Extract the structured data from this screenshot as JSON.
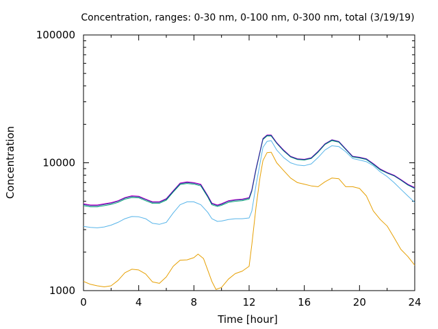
{
  "chart_data": {
    "type": "line",
    "title": "Concentration, ranges: 0-30 nm, 0-100 nm, 0-300 nm, total (3/19/19)",
    "xlabel": "Time [hour]",
    "ylabel": "Concentration",
    "xlim": [
      0,
      24
    ],
    "ylim": [
      1000,
      100000
    ],
    "yscale": "log",
    "grid": false,
    "legend": "none",
    "x_ticks": [
      0,
      4,
      8,
      12,
      16,
      20,
      24
    ],
    "y_ticks": [
      1000,
      10000,
      100000
    ],
    "series": [
      {
        "color": "#e69f00",
        "points": [
          [
            0,
            1180
          ],
          [
            0.5,
            1120
          ],
          [
            1,
            1090
          ],
          [
            1.5,
            1070
          ],
          [
            2,
            1090
          ],
          [
            2.5,
            1200
          ],
          [
            3,
            1380
          ],
          [
            3.5,
            1470
          ],
          [
            4,
            1450
          ],
          [
            4.5,
            1350
          ],
          [
            5,
            1170
          ],
          [
            5.5,
            1140
          ],
          [
            6,
            1280
          ],
          [
            6.5,
            1550
          ],
          [
            7,
            1730
          ],
          [
            7.5,
            1740
          ],
          [
            8,
            1810
          ],
          [
            8.3,
            1930
          ],
          [
            8.7,
            1780
          ],
          [
            9,
            1450
          ],
          [
            9.3,
            1180
          ],
          [
            9.6,
            1020
          ],
          [
            10,
            1060
          ],
          [
            10.5,
            1230
          ],
          [
            11,
            1360
          ],
          [
            11.5,
            1420
          ],
          [
            12,
            1550
          ],
          [
            12.2,
            2300
          ],
          [
            12.5,
            4500
          ],
          [
            12.8,
            7800
          ],
          [
            13,
            10400
          ],
          [
            13.3,
            12000
          ],
          [
            13.6,
            12100
          ],
          [
            14,
            10000
          ],
          [
            14.5,
            8700
          ],
          [
            15,
            7600
          ],
          [
            15.5,
            7000
          ],
          [
            16,
            6800
          ],
          [
            16.5,
            6600
          ],
          [
            17,
            6500
          ],
          [
            17.5,
            7100
          ],
          [
            18,
            7600
          ],
          [
            18.5,
            7500
          ],
          [
            19,
            6500
          ],
          [
            19.5,
            6500
          ],
          [
            20,
            6300
          ],
          [
            20.5,
            5500
          ],
          [
            21,
            4200
          ],
          [
            21.5,
            3600
          ],
          [
            22,
            3200
          ],
          [
            22.5,
            2600
          ],
          [
            23,
            2100
          ],
          [
            23.5,
            1850
          ],
          [
            24,
            1580
          ]
        ]
      },
      {
        "color": "#56b4e9",
        "points": [
          [
            0,
            3180
          ],
          [
            0.5,
            3120
          ],
          [
            1,
            3100
          ],
          [
            1.5,
            3150
          ],
          [
            2,
            3250
          ],
          [
            2.5,
            3420
          ],
          [
            3,
            3650
          ],
          [
            3.5,
            3800
          ],
          [
            4,
            3780
          ],
          [
            4.5,
            3650
          ],
          [
            5,
            3360
          ],
          [
            5.5,
            3300
          ],
          [
            6,
            3420
          ],
          [
            6.5,
            4050
          ],
          [
            7,
            4700
          ],
          [
            7.5,
            4950
          ],
          [
            8,
            4950
          ],
          [
            8.5,
            4700
          ],
          [
            9,
            4100
          ],
          [
            9.3,
            3650
          ],
          [
            9.7,
            3480
          ],
          [
            10,
            3500
          ],
          [
            10.5,
            3600
          ],
          [
            11,
            3650
          ],
          [
            11.5,
            3650
          ],
          [
            12,
            3700
          ],
          [
            12.2,
            4200
          ],
          [
            12.5,
            6700
          ],
          [
            12.8,
            10000
          ],
          [
            13,
            13200
          ],
          [
            13.3,
            14700
          ],
          [
            13.6,
            14900
          ],
          [
            14,
            12600
          ],
          [
            14.5,
            11000
          ],
          [
            15,
            10000
          ],
          [
            15.5,
            9600
          ],
          [
            16,
            9500
          ],
          [
            16.5,
            9800
          ],
          [
            17,
            11000
          ],
          [
            17.5,
            12600
          ],
          [
            18,
            13600
          ],
          [
            18.5,
            13400
          ],
          [
            19,
            12200
          ],
          [
            19.5,
            10800
          ],
          [
            20,
            10500
          ],
          [
            20.5,
            10200
          ],
          [
            21,
            9500
          ],
          [
            21.5,
            8500
          ],
          [
            22,
            7800
          ],
          [
            22.5,
            7000
          ],
          [
            23,
            6200
          ],
          [
            23.5,
            5500
          ],
          [
            24,
            4900
          ]
        ]
      },
      {
        "color": "#009e73",
        "points": [
          [
            0,
            4620
          ],
          [
            0.5,
            4520
          ],
          [
            1,
            4520
          ],
          [
            1.5,
            4620
          ],
          [
            2,
            4720
          ],
          [
            2.5,
            4900
          ],
          [
            3,
            5200
          ],
          [
            3.5,
            5350
          ],
          [
            4,
            5320
          ],
          [
            4.5,
            5050
          ],
          [
            5,
            4820
          ],
          [
            5.5,
            4820
          ],
          [
            6,
            5100
          ],
          [
            6.5,
            5900
          ],
          [
            7,
            6750
          ],
          [
            7.5,
            6900
          ],
          [
            8,
            6800
          ],
          [
            8.5,
            6600
          ],
          [
            9,
            5400
          ],
          [
            9.3,
            4700
          ],
          [
            9.7,
            4550
          ],
          [
            10,
            4650
          ],
          [
            10.5,
            4900
          ],
          [
            11,
            5000
          ],
          [
            11.5,
            5050
          ],
          [
            12,
            5200
          ],
          [
            12.2,
            6000
          ],
          [
            12.5,
            8800
          ],
          [
            12.8,
            12200
          ],
          [
            13,
            15200
          ],
          [
            13.3,
            16200
          ],
          [
            13.6,
            16200
          ],
          [
            14,
            14200
          ],
          [
            14.5,
            12400
          ],
          [
            15,
            11100
          ],
          [
            15.5,
            10600
          ],
          [
            16,
            10500
          ],
          [
            16.5,
            10800
          ],
          [
            17,
            12100
          ],
          [
            17.5,
            13900
          ],
          [
            18,
            14900
          ],
          [
            18.5,
            14500
          ],
          [
            19,
            12700
          ],
          [
            19.5,
            11100
          ],
          [
            20,
            10900
          ],
          [
            20.5,
            10600
          ],
          [
            21,
            9700
          ],
          [
            21.5,
            8800
          ],
          [
            22,
            8300
          ],
          [
            22.5,
            7900
          ],
          [
            23,
            7300
          ],
          [
            23.5,
            6700
          ],
          [
            24,
            6300
          ]
        ]
      },
      {
        "color": "#cc00cc",
        "points": [
          [
            0,
            4780
          ],
          [
            0.5,
            4680
          ],
          [
            1,
            4680
          ],
          [
            1.5,
            4780
          ],
          [
            2,
            4880
          ],
          [
            2.5,
            5050
          ],
          [
            3,
            5350
          ],
          [
            3.5,
            5520
          ],
          [
            4,
            5480
          ],
          [
            4.5,
            5200
          ],
          [
            5,
            4960
          ],
          [
            5.5,
            4960
          ],
          [
            6,
            5250
          ],
          [
            6.5,
            6050
          ],
          [
            7,
            6950
          ],
          [
            7.5,
            7100
          ],
          [
            8,
            7000
          ],
          [
            8.5,
            6800
          ],
          [
            9,
            5550
          ],
          [
            9.3,
            4840
          ],
          [
            9.7,
            4680
          ],
          [
            10,
            4790
          ],
          [
            10.5,
            5050
          ],
          [
            11,
            5150
          ],
          [
            11.5,
            5200
          ],
          [
            12,
            5350
          ],
          [
            12.2,
            6150
          ],
          [
            12.5,
            9000
          ],
          [
            12.8,
            12400
          ],
          [
            13,
            15500
          ],
          [
            13.3,
            16500
          ],
          [
            13.6,
            16500
          ],
          [
            14,
            14400
          ],
          [
            14.5,
            12600
          ],
          [
            15,
            11250
          ],
          [
            15.5,
            10750
          ],
          [
            16,
            10650
          ],
          [
            16.5,
            10950
          ],
          [
            17,
            12300
          ],
          [
            17.5,
            14100
          ],
          [
            18,
            15150
          ],
          [
            18.5,
            14700
          ],
          [
            19,
            12850
          ],
          [
            19.5,
            11250
          ],
          [
            20,
            11050
          ],
          [
            20.5,
            10750
          ],
          [
            21,
            9850
          ],
          [
            21.5,
            8950
          ],
          [
            22,
            8400
          ],
          [
            22.5,
            8000
          ],
          [
            23,
            7400
          ],
          [
            23.5,
            6800
          ],
          [
            24,
            6400
          ]
        ]
      },
      {
        "color": "#1f2f9a",
        "points": [
          [
            0,
            4720
          ],
          [
            0.5,
            4620
          ],
          [
            1,
            4620
          ],
          [
            1.5,
            4720
          ],
          [
            2,
            4820
          ],
          [
            2.5,
            5000
          ],
          [
            3,
            5300
          ],
          [
            3.5,
            5460
          ],
          [
            4,
            5420
          ],
          [
            4.5,
            5150
          ],
          [
            5,
            4910
          ],
          [
            5.5,
            4910
          ],
          [
            6,
            5200
          ],
          [
            6.5,
            6000
          ],
          [
            7,
            6870
          ],
          [
            7.5,
            7020
          ],
          [
            8,
            6920
          ],
          [
            8.5,
            6720
          ],
          [
            9,
            5500
          ],
          [
            9.3,
            4790
          ],
          [
            9.7,
            4630
          ],
          [
            10,
            4740
          ],
          [
            10.5,
            5000
          ],
          [
            11,
            5100
          ],
          [
            11.5,
            5150
          ],
          [
            12,
            5300
          ],
          [
            12.2,
            6100
          ],
          [
            12.5,
            8950
          ],
          [
            12.8,
            12350
          ],
          [
            13,
            15400
          ],
          [
            13.3,
            16400
          ],
          [
            13.6,
            16400
          ],
          [
            14,
            14300
          ],
          [
            14.5,
            12500
          ],
          [
            15,
            11200
          ],
          [
            15.5,
            10700
          ],
          [
            16,
            10600
          ],
          [
            16.5,
            10900
          ],
          [
            17,
            12250
          ],
          [
            17.5,
            14050
          ],
          [
            18,
            15100
          ],
          [
            18.5,
            14650
          ],
          [
            19,
            12800
          ],
          [
            19.5,
            11200
          ],
          [
            20,
            11000
          ],
          [
            20.5,
            10700
          ],
          [
            21,
            9800
          ],
          [
            21.5,
            8900
          ],
          [
            22,
            8350
          ],
          [
            22.5,
            7950
          ],
          [
            23,
            7350
          ],
          [
            23.5,
            6750
          ],
          [
            24,
            6350
          ]
        ]
      }
    ]
  }
}
